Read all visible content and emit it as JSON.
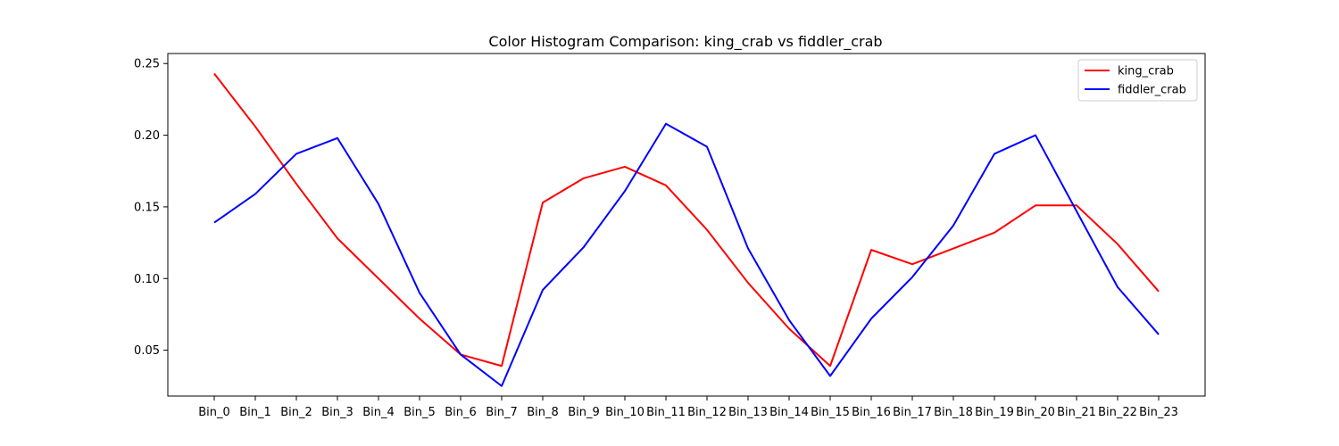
{
  "chart_data": {
    "type": "line",
    "title": "Color Histogram Comparison: king_crab vs fiddler_crab",
    "xlabel": "",
    "ylabel": "",
    "categories": [
      "Bin_0",
      "Bin_1",
      "Bin_2",
      "Bin_3",
      "Bin_4",
      "Bin_5",
      "Bin_6",
      "Bin_7",
      "Bin_8",
      "Bin_9",
      "Bin_10",
      "Bin_11",
      "Bin_12",
      "Bin_13",
      "Bin_14",
      "Bin_15",
      "Bin_16",
      "Bin_17",
      "Bin_18",
      "Bin_19",
      "Bin_20",
      "Bin_21",
      "Bin_22",
      "Bin_23"
    ],
    "ylim": [
      0.018,
      0.257
    ],
    "yticks": [
      0.05,
      0.1,
      0.15,
      0.2,
      0.25
    ],
    "ytick_labels": [
      "0.05",
      "0.10",
      "0.15",
      "0.20",
      "0.25"
    ],
    "grid": false,
    "legend_position": "top-right",
    "series": [
      {
        "name": "king_crab",
        "color": "#ff0000",
        "values": [
          0.243,
          0.206,
          0.166,
          0.128,
          0.1,
          0.072,
          0.047,
          0.039,
          0.153,
          0.17,
          0.178,
          0.165,
          0.134,
          0.097,
          0.065,
          0.039,
          0.12,
          0.11,
          0.121,
          0.132,
          0.151,
          0.151,
          0.124,
          0.091
        ]
      },
      {
        "name": "fiddler_crab",
        "color": "#0000ff",
        "values": [
          0.139,
          0.159,
          0.187,
          0.198,
          0.152,
          0.09,
          0.047,
          0.025,
          0.092,
          0.122,
          0.161,
          0.208,
          0.192,
          0.121,
          0.071,
          0.032,
          0.072,
          0.101,
          0.137,
          0.187,
          0.2,
          0.147,
          0.094,
          0.061
        ]
      }
    ]
  }
}
